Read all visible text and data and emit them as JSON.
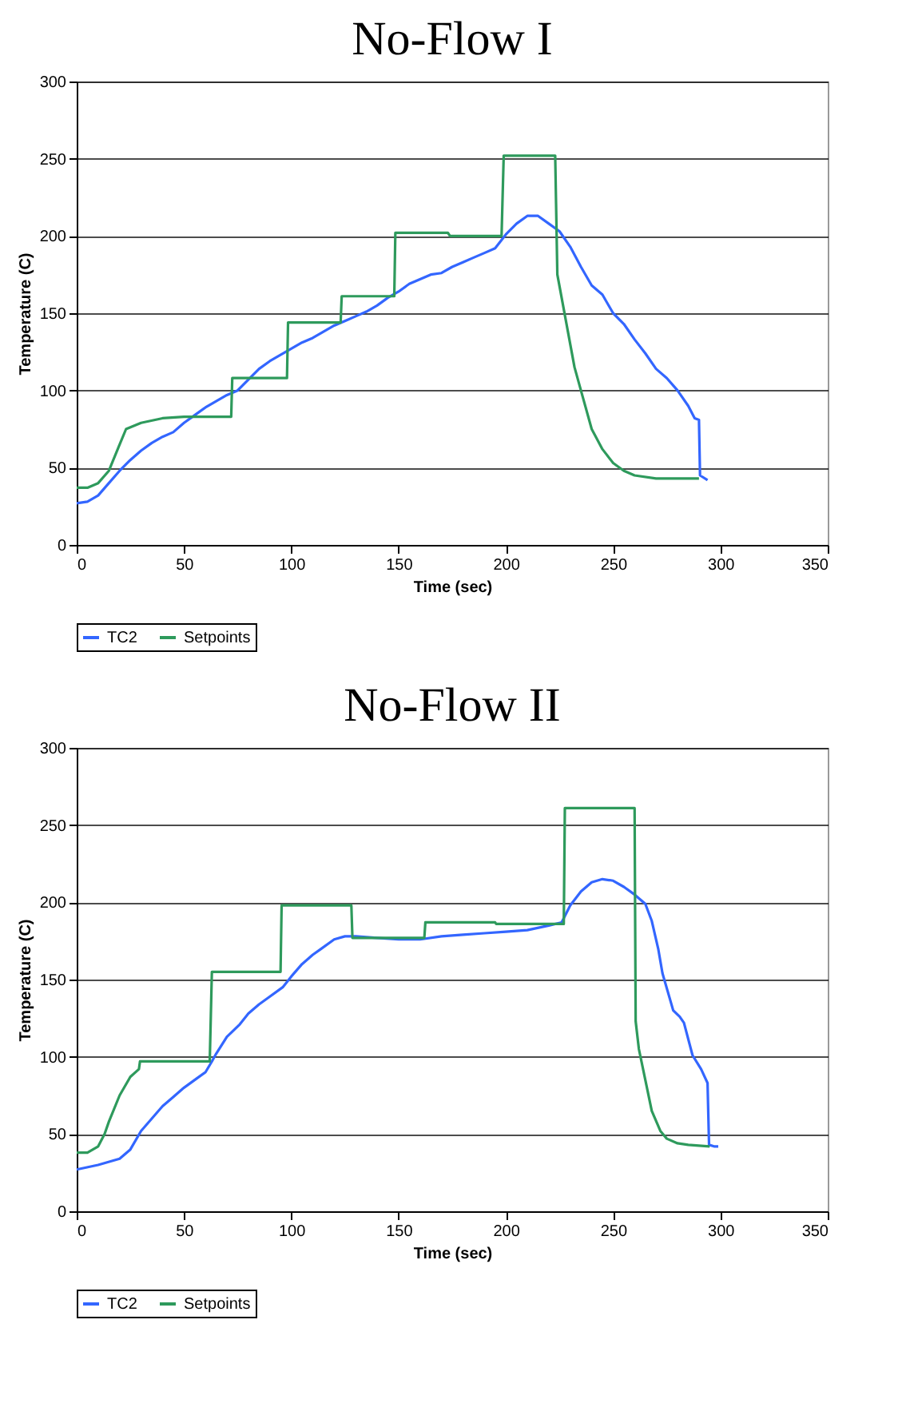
{
  "chart_data": [
    {
      "type": "line",
      "title": "No-Flow I",
      "xlabel": "Time (sec)",
      "ylabel": "Temperature (C)",
      "xlim": [
        0,
        350
      ],
      "xticks": [
        0,
        50,
        100,
        150,
        200,
        250,
        300,
        350
      ],
      "ylim": [
        0,
        300
      ],
      "yticks": [
        0,
        50,
        100,
        150,
        200,
        250,
        300
      ],
      "grid": "y",
      "legend": "bottom",
      "marker": "none",
      "line_style": "solid",
      "series": [
        {
          "name": "TC2",
          "color": "#3366ff",
          "x": [
            0,
            5,
            10,
            15,
            20,
            25,
            30,
            35,
            40,
            45,
            50,
            55,
            60,
            65,
            70,
            75,
            80,
            85,
            90,
            95,
            100,
            105,
            110,
            115,
            120,
            125,
            130,
            135,
            140,
            145,
            150,
            155,
            160,
            165,
            170,
            175,
            180,
            185,
            190,
            195,
            200,
            205,
            210,
            215,
            220,
            225,
            230,
            235,
            240,
            245,
            250,
            255,
            260,
            265,
            270,
            275,
            280,
            285,
            288,
            290,
            290.5,
            294
          ],
          "values": [
            27,
            28,
            32,
            40,
            48,
            55,
            61,
            66,
            70,
            73,
            79,
            84,
            89,
            93,
            97,
            100,
            107,
            114,
            119,
            123,
            127,
            131,
            134,
            138,
            142,
            145,
            148,
            151,
            155,
            160,
            164,
            169,
            172,
            175,
            176,
            180,
            183,
            186,
            189,
            192,
            201,
            208,
            213,
            213,
            208,
            203,
            193,
            180,
            168,
            162,
            150,
            143,
            133,
            124,
            114,
            108,
            100,
            90,
            82,
            81,
            45,
            42
          ]
        },
        {
          "name": "Setpoints",
          "color": "#2e9a5c",
          "x": [
            0,
            5,
            10,
            15,
            20,
            23,
            30,
            40,
            50,
            72,
            72.5,
            98,
            98.5,
            123,
            123.5,
            148,
            148.5,
            173,
            174,
            198,
            199,
            223,
            224,
            228,
            232,
            236,
            240,
            245,
            250,
            255,
            260,
            270,
            290
          ],
          "values": [
            37,
            37,
            40,
            48,
            65,
            75,
            79,
            82,
            83,
            83,
            108,
            108,
            144,
            144,
            161,
            161,
            202,
            202,
            200,
            200,
            252,
            252,
            175,
            145,
            115,
            95,
            75,
            62,
            53,
            48,
            45,
            43,
            43
          ]
        }
      ]
    },
    {
      "type": "line",
      "title": "No-Flow II",
      "xlabel": "Time (sec)",
      "ylabel": "Temperature (C)",
      "xlim": [
        0,
        350
      ],
      "xticks": [
        0,
        50,
        100,
        150,
        200,
        250,
        300,
        350
      ],
      "ylim": [
        0,
        300
      ],
      "yticks": [
        0,
        50,
        100,
        150,
        200,
        250,
        300
      ],
      "grid": "y",
      "legend": "bottom",
      "marker": "none",
      "line_style": "solid",
      "series": [
        {
          "name": "TC2",
          "color": "#3366ff",
          "x": [
            0,
            10,
            20,
            25,
            30,
            35,
            40,
            45,
            50,
            55,
            60,
            63,
            65,
            70,
            76,
            80,
            85,
            89,
            96,
            100,
            105,
            110,
            114,
            120,
            125,
            130,
            140,
            150,
            160,
            170,
            180,
            190,
            200,
            210,
            220,
            226,
            230,
            235,
            240,
            245,
            250,
            255,
            260,
            265,
            268,
            271,
            273,
            278,
            281,
            283,
            287,
            291,
            294,
            294.7,
            297,
            299
          ],
          "values": [
            27,
            30,
            34,
            40,
            52,
            60,
            68,
            74,
            80,
            85,
            90,
            97,
            102,
            113,
            121,
            128,
            134,
            138,
            145,
            152,
            160,
            166,
            170,
            176,
            178,
            178,
            177,
            176,
            176,
            178,
            179,
            180,
            181,
            182,
            185,
            187,
            198,
            207,
            213,
            215,
            214,
            210,
            205,
            199,
            188,
            170,
            154,
            130,
            126,
            122,
            101,
            92,
            83,
            43,
            42,
            42
          ]
        },
        {
          "name": "Setpoints",
          "color": "#2e9a5c",
          "x": [
            0,
            5,
            10,
            13,
            15,
            20,
            25,
            29,
            29.5,
            62,
            63,
            95,
            95.5,
            128,
            128.5,
            162,
            162.5,
            195,
            195.5,
            227,
            227.5,
            260,
            260.5,
            262,
            265,
            268,
            272,
            275,
            280,
            285,
            295
          ],
          "values": [
            38,
            38,
            42,
            50,
            58,
            75,
            87,
            92,
            97,
            97,
            155,
            155,
            198,
            198,
            177,
            177,
            187,
            187,
            186,
            186,
            261,
            261,
            123,
            105,
            85,
            65,
            52,
            47,
            44,
            43,
            42
          ]
        }
      ]
    }
  ]
}
